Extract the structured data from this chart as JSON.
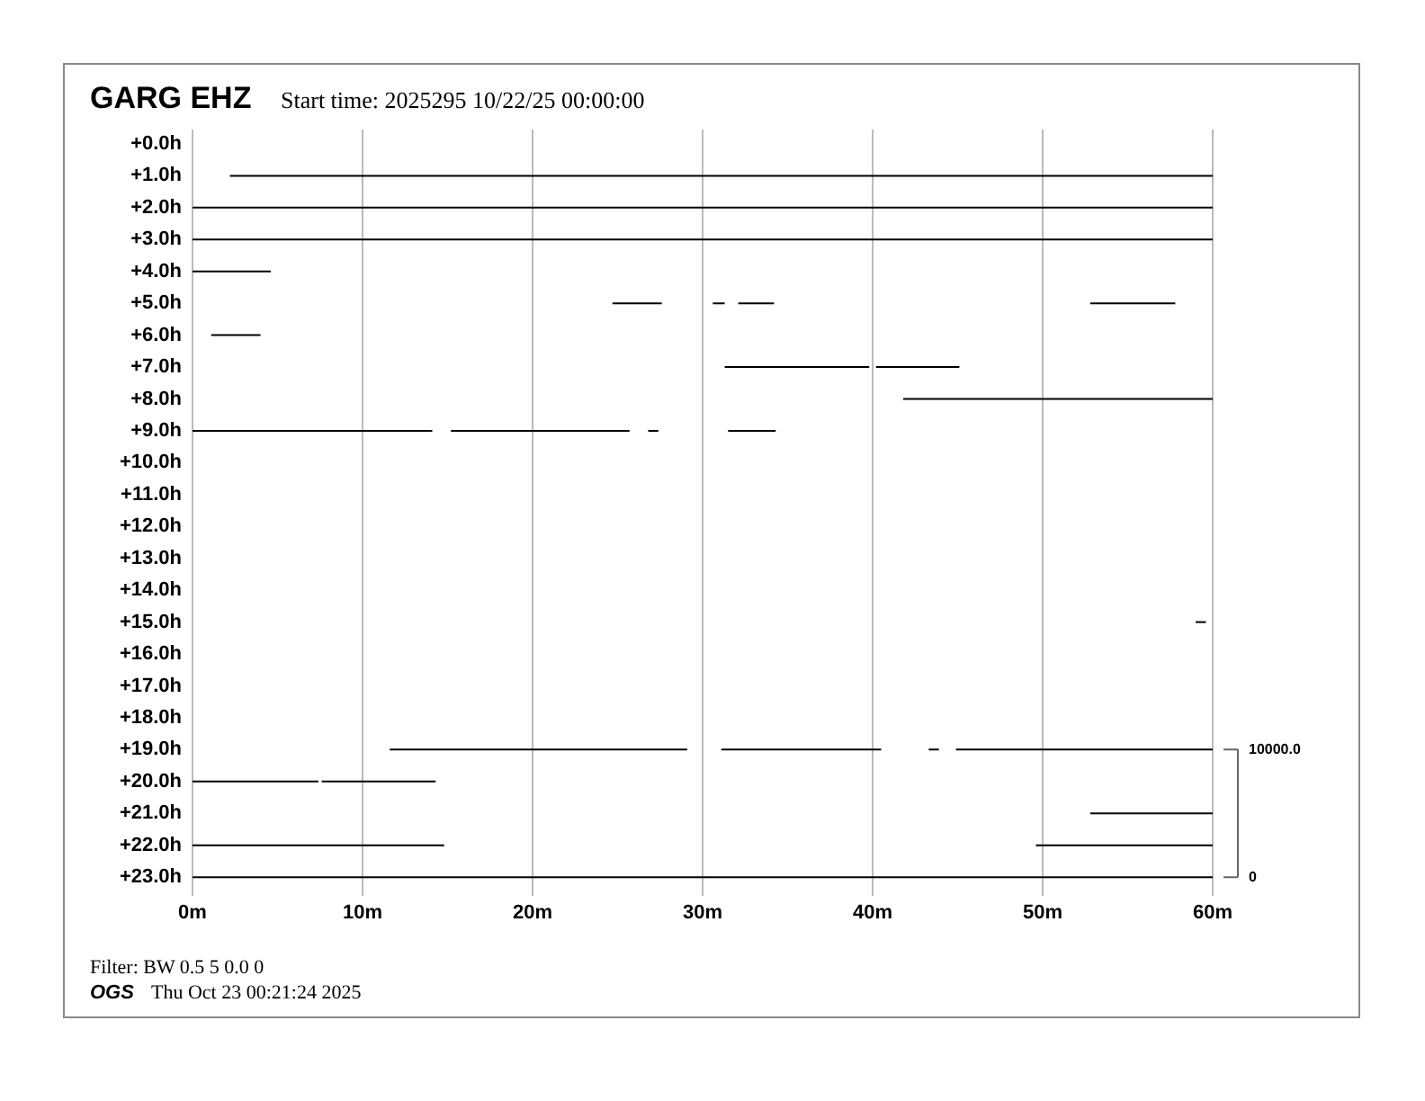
{
  "chart_data": {
    "type": "line",
    "title": "GARG EHZ",
    "subtitle": "Start time: 2025295 10/22/25 00:00:00",
    "annotations": [
      "Filter: BW 0.5 5 0.0 0",
      "OGS",
      "Thu Oct 23 00:21:24 2025"
    ],
    "xlim": [
      0,
      60
    ],
    "xticks": [
      {
        "value": 0,
        "label": "0m"
      },
      {
        "value": 10,
        "label": "10m"
      },
      {
        "value": 20,
        "label": "20m"
      },
      {
        "value": 30,
        "label": "30m"
      },
      {
        "value": 40,
        "label": "40m"
      },
      {
        "value": 50,
        "label": "50m"
      },
      {
        "value": 60,
        "label": "60m"
      }
    ],
    "ylim": [
      23.25,
      -0.45
    ],
    "yticks": [
      {
        "value": 0,
        "label": "+0.0h"
      },
      {
        "value": 1,
        "label": "+1.0h"
      },
      {
        "value": 2,
        "label": "+2.0h"
      },
      {
        "value": 3,
        "label": "+3.0h"
      },
      {
        "value": 4,
        "label": "+4.0h"
      },
      {
        "value": 5,
        "label": "+5.0h"
      },
      {
        "value": 6,
        "label": "+6.0h"
      },
      {
        "value": 7,
        "label": "+7.0h"
      },
      {
        "value": 8,
        "label": "+8.0h"
      },
      {
        "value": 9,
        "label": "+9.0h"
      },
      {
        "value": 10,
        "label": "+10.0h"
      },
      {
        "value": 11,
        "label": "+11.0h"
      },
      {
        "value": 12,
        "label": "+12.0h"
      },
      {
        "value": 13,
        "label": "+13.0h"
      },
      {
        "value": 14,
        "label": "+14.0h"
      },
      {
        "value": 15,
        "label": "+15.0h"
      },
      {
        "value": 16,
        "label": "+16.0h"
      },
      {
        "value": 17,
        "label": "+17.0h"
      },
      {
        "value": 18,
        "label": "+18.0h"
      },
      {
        "value": 19,
        "label": "+19.0h"
      },
      {
        "value": 20,
        "label": "+20.0h"
      },
      {
        "value": 21,
        "label": "+21.0h"
      },
      {
        "value": 22,
        "label": "+22.0h"
      },
      {
        "value": 23,
        "label": "+23.0h"
      }
    ],
    "y2lim": [
      -625,
      58625
    ],
    "y2ticks": [
      {
        "value": 0,
        "label": "0"
      },
      {
        "value": 10000,
        "label": "10000.0"
      }
    ],
    "grid": "x",
    "legend": false,
    "marker": "none",
    "line_style": "solid",
    "series": [
      {
        "color": "#000000",
        "x": [
          2.2,
          60
        ],
        "values": [
          1,
          1
        ]
      },
      {
        "color": "#000000",
        "x": [
          0,
          60
        ],
        "values": [
          2,
          2
        ]
      },
      {
        "color": "#000000",
        "x": [
          0,
          60
        ],
        "values": [
          3,
          3
        ]
      },
      {
        "color": "#000000",
        "x": [
          0,
          4.6
        ],
        "values": [
          4,
          4
        ]
      },
      {
        "color": "#000000",
        "x": [
          24.7,
          27.6,
          29,
          30.6,
          31.3,
          31.7,
          32.1,
          34.2,
          40,
          52.8,
          57.8
        ],
        "values": [
          5,
          5,
          null,
          5,
          5,
          null,
          5,
          5,
          null,
          5,
          5
        ]
      },
      {
        "color": "#000000",
        "x": [
          1.1,
          4.0
        ],
        "values": [
          6,
          6
        ]
      },
      {
        "color": "#000000",
        "x": [
          31.3,
          39.8,
          40,
          40.2,
          45.1
        ],
        "values": [
          7,
          7,
          null,
          7,
          7
        ]
      },
      {
        "color": "#000000",
        "x": [
          41.8,
          60
        ],
        "values": [
          8,
          8
        ]
      },
      {
        "color": "#000000",
        "x": [
          0,
          14.1,
          14.6,
          15.2,
          25.7,
          26.3,
          26.8,
          27.4,
          29,
          31.5,
          34.3
        ],
        "values": [
          9,
          9,
          null,
          9,
          9,
          null,
          9,
          9,
          null,
          9,
          9
        ]
      },
      {
        "color": "#000000",
        "x": [
          59.0,
          59.6
        ],
        "values": [
          15,
          15
        ]
      },
      {
        "color": "#000000",
        "x": [
          11.6,
          29.1,
          30,
          31.1,
          40.5,
          42,
          43.3,
          43.9,
          44.4,
          44.9,
          60
        ],
        "values": [
          19,
          19,
          null,
          19,
          19,
          null,
          19,
          19,
          null,
          19,
          19
        ]
      },
      {
        "color": "#000000",
        "x": [
          0,
          7.4,
          7.5,
          7.6,
          14.3
        ],
        "values": [
          20,
          20,
          null,
          20,
          20
        ]
      },
      {
        "color": "#000000",
        "x": [
          52.8,
          60
        ],
        "values": [
          21,
          21
        ]
      },
      {
        "color": "#000000",
        "x": [
          0,
          14.8,
          30,
          49.6,
          60
        ],
        "values": [
          22,
          22,
          null,
          22,
          22
        ]
      },
      {
        "color": "#000000",
        "x": [
          0,
          60
        ],
        "values": [
          23,
          23
        ]
      }
    ]
  }
}
